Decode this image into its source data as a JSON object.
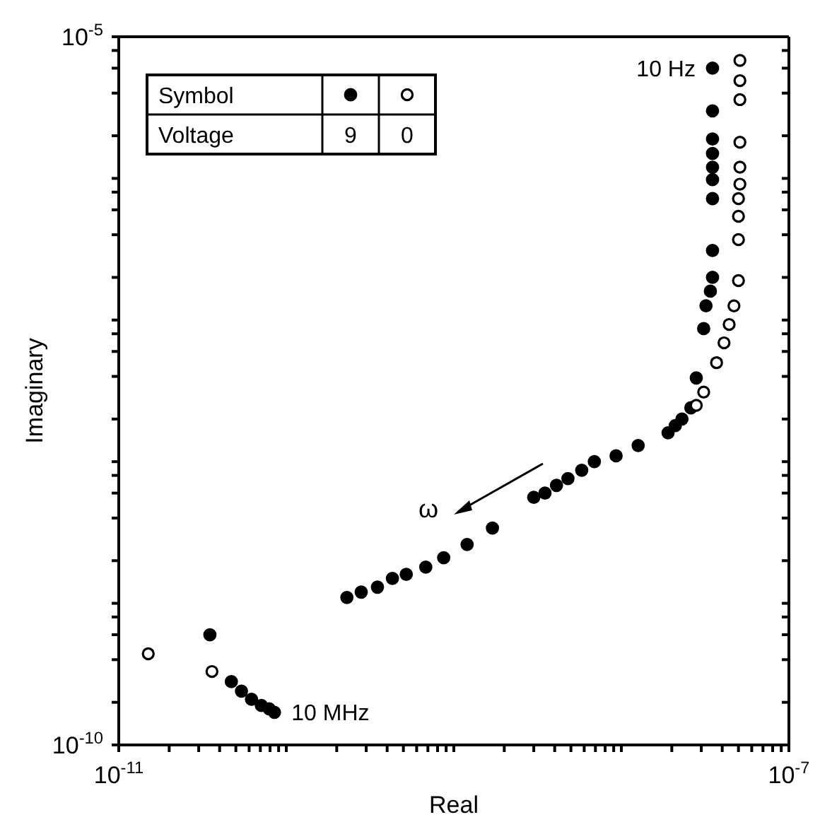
{
  "chart_data": {
    "type": "scatter",
    "xlabel": "Real",
    "ylabel": "Imaginary",
    "log": "xy",
    "xlim": [
      1e-11,
      1e-07
    ],
    "ylim": [
      1e-10,
      1e-05
    ],
    "xticks": [
      {
        "value": 1e-11,
        "label": "10$^{-11}$"
      },
      {
        "value": 2e-11,
        "label": null
      },
      {
        "value": 3e-11,
        "label": null
      },
      {
        "value": 4e-11,
        "label": null
      },
      {
        "value": 5e-11,
        "label": null
      },
      {
        "value": 6e-11,
        "label": null
      },
      {
        "value": 7e-11,
        "label": null
      },
      {
        "value": 8e-11,
        "label": null
      },
      {
        "value": 9e-11,
        "label": null
      },
      {
        "value": 1e-10,
        "label": null
      },
      {
        "value": 2e-10,
        "label": null
      },
      {
        "value": 3e-10,
        "label": null
      },
      {
        "value": 4e-10,
        "label": null
      },
      {
        "value": 5e-10,
        "label": null
      },
      {
        "value": 6e-10,
        "label": null
      },
      {
        "value": 7e-10,
        "label": null
      },
      {
        "value": 8e-10,
        "label": null
      },
      {
        "value": 9e-10,
        "label": null
      },
      {
        "value": 1e-09,
        "label": null
      },
      {
        "value": 2e-09,
        "label": null
      },
      {
        "value": 3e-09,
        "label": null
      },
      {
        "value": 4e-09,
        "label": null
      },
      {
        "value": 5e-09,
        "label": null
      },
      {
        "value": 6e-09,
        "label": null
      },
      {
        "value": 7e-09,
        "label": null
      },
      {
        "value": 8e-09,
        "label": null
      },
      {
        "value": 9e-09,
        "label": null
      },
      {
        "value": 1e-08,
        "label": null
      },
      {
        "value": 2e-08,
        "label": null
      },
      {
        "value": 3e-08,
        "label": null
      },
      {
        "value": 4e-08,
        "label": null
      },
      {
        "value": 5e-08,
        "label": null
      },
      {
        "value": 6e-08,
        "label": null
      },
      {
        "value": 7e-08,
        "label": null
      },
      {
        "value": 8e-08,
        "label": null
      },
      {
        "value": 9e-08,
        "label": null
      },
      {
        "value": 1e-07,
        "label": "10$^{-7}$"
      }
    ],
    "yticks": [
      {
        "value": 1e-10,
        "label": "10$^{-10}$"
      },
      {
        "value": 2e-10,
        "label": null
      },
      {
        "value": 4e-10,
        "label": null
      },
      {
        "value": 6e-10,
        "label": null
      },
      {
        "value": 8e-10,
        "label": null
      },
      {
        "value": 1e-09,
        "label": null
      },
      {
        "value": 2e-09,
        "label": null
      },
      {
        "value": 4e-09,
        "label": null
      },
      {
        "value": 6e-09,
        "label": null
      },
      {
        "value": 8e-09,
        "label": null
      },
      {
        "value": 1e-08,
        "label": null
      },
      {
        "value": 2e-08,
        "label": null
      },
      {
        "value": 4e-08,
        "label": null
      },
      {
        "value": 6e-08,
        "label": null
      },
      {
        "value": 8e-08,
        "label": null
      },
      {
        "value": 1e-07,
        "label": null
      },
      {
        "value": 2e-07,
        "label": null
      },
      {
        "value": 4e-07,
        "label": null
      },
      {
        "value": 6e-07,
        "label": null
      },
      {
        "value": 8e-07,
        "label": null
      },
      {
        "value": 1e-06,
        "label": null
      },
      {
        "value": 2e-06,
        "label": null
      },
      {
        "value": 4e-06,
        "label": null
      },
      {
        "value": 6e-06,
        "label": null
      },
      {
        "value": 8e-06,
        "label": null
      },
      {
        "value": 1e-05,
        "label": "10$^{-5}$"
      }
    ],
    "marker": "circle",
    "legend": "top left",
    "legend_title": "Voltage",
    "annotations": [
      {
        "text": "10 Hz",
        "x": 3.5e-08,
        "y": 6e-06
      },
      {
        "text": "10 MHz",
        "x": 8.5e-11,
        "y": 1.7e-10
      },
      "ω",
      "Symbol"
    ],
    "series": [
      {
        "name": "9",
        "color": "#000000",
        "x": [
          3.5e-11,
          4.7e-11,
          5.4e-11,
          6.2e-11,
          7.1e-11,
          7.9e-11,
          8.5e-11,
          2.3e-10,
          2.8e-10,
          3.5e-10,
          4.3e-10,
          5.2e-10,
          6.8e-10,
          8.7e-10,
          1.2e-09,
          1.7e-09,
          3e-09,
          3.5e-09,
          4.1e-09,
          4.8e-09,
          5.8e-09,
          6.9e-09,
          9.3e-09,
          1.26e-08,
          1.9e-08,
          2.1e-08,
          2.3e-08,
          2.6e-08,
          2.8e-08,
          3.1e-08,
          3.2e-08,
          3.4e-08,
          3.5e-08,
          3.5e-08,
          3.5e-08,
          3.5e-08,
          3.5e-08,
          3.5e-08,
          3.5e-08,
          3.5e-08,
          3.5e-08
        ],
        "values": [
          6e-10,
          2.8e-10,
          2.4e-10,
          2.1e-10,
          1.9e-10,
          1.8e-10,
          1.7e-10,
          1.1e-09,
          1.2e-09,
          1.3e-09,
          1.5e-09,
          1.6e-09,
          1.8e-09,
          2.1e-09,
          2.6e-09,
          3.4e-09,
          5.6e-09,
          6e-09,
          6.8e-09,
          7.6e-09,
          8.7e-09,
          1e-08,
          1.1e-08,
          1.3e-08,
          1.6e-08,
          1.8e-08,
          2e-08,
          2.4e-08,
          3.9e-08,
          8.7e-08,
          1.26e-07,
          1.6e-07,
          2e-07,
          3.1e-07,
          7.2e-07,
          9.8e-07,
          1.2e-06,
          1.5e-06,
          1.9e-06,
          3e-06,
          6e-06
        ]
      },
      {
        "name": "0",
        "color": "#000000",
        "x": [
          1.5e-11,
          3.6e-11,
          2.8e-08,
          3.1e-08,
          3.7e-08,
          4.1e-08,
          4.4e-08,
          4.7e-08,
          5e-08,
          5e-08,
          5e-08,
          5e-08,
          5.1e-08,
          5.1e-08,
          5.1e-08,
          5.1e-08,
          5.1e-08,
          5.1e-08
        ],
        "values": [
          4.4e-10,
          3.3e-10,
          2.5e-08,
          3.1e-08,
          5e-08,
          6.9e-08,
          9.3e-08,
          1.26e-07,
          1.9e-07,
          3.7e-07,
          5.4e-07,
          7.2e-07,
          9.1e-07,
          1.2e-06,
          1.8e-06,
          3.6e-06,
          4.9e-06,
          6.8e-06
        ]
      }
    ]
  }
}
